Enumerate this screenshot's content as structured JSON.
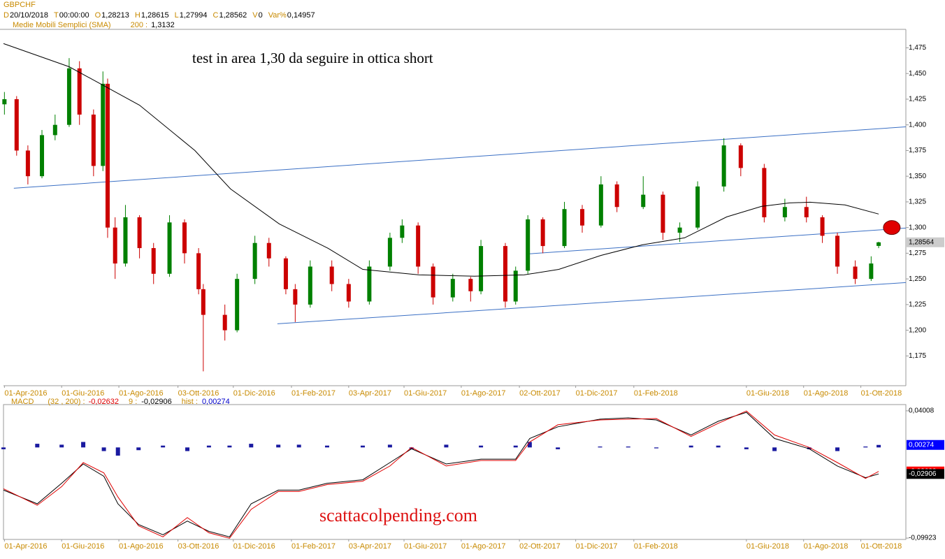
{
  "watermark": "scattacolpending.com",
  "chart_data": [
    {
      "type": "candlestick",
      "symbol": "GBPCHF",
      "info": [
        {
          "label": "D",
          "value": "20/10/2018"
        },
        {
          "label": "T",
          "value": "00:00:00"
        },
        {
          "label": "O",
          "value": "1,28213"
        },
        {
          "label": "H",
          "value": "1,28615"
        },
        {
          "label": "L",
          "value": "1,27994"
        },
        {
          "label": "C",
          "value": "1,28562"
        },
        {
          "label": "V",
          "value": "0"
        },
        {
          "label": "Var%",
          "value": "0,14957"
        }
      ],
      "indicator_label": "Medie Mobili Semplici (SMA)",
      "indicator_period": "200 :",
      "indicator_value": "1,3132",
      "annotation": "test in area 1,30 da seguire in ottica short",
      "x": [
        "2016-04-01",
        "2016-04-14",
        "2016-04-26",
        "2016-05-11",
        "2016-05-25",
        "2016-06-09",
        "2016-06-20",
        "2016-07-05",
        "2016-07-15",
        "2016-07-20",
        "2016-07-28",
        "2016-08-08",
        "2016-08-23",
        "2016-09-07",
        "2016-09-24",
        "2016-10-10",
        "2016-10-25",
        "2016-10-30",
        "2016-11-22",
        "2016-12-05",
        "2016-12-24",
        "2017-01-08",
        "2017-01-26",
        "2017-02-05",
        "2017-02-21",
        "2017-03-16",
        "2017-04-03",
        "2017-04-25",
        "2017-05-17",
        "2017-05-30",
        "2017-06-16",
        "2017-07-02",
        "2017-07-23",
        "2017-08-11",
        "2017-08-22",
        "2017-09-17",
        "2017-09-28",
        "2017-10-11",
        "2017-10-27",
        "2017-11-19",
        "2017-12-08",
        "2017-12-28",
        "2018-01-14",
        "2018-02-11",
        "2018-03-04",
        "2018-03-22",
        "2018-04-10",
        "2018-05-08",
        "2018-05-26",
        "2018-06-20",
        "2018-07-12",
        "2018-08-04",
        "2018-08-21",
        "2018-09-06",
        "2018-09-25",
        "2018-10-12",
        "2018-10-20"
      ],
      "open": [
        1.42,
        1.425,
        1.375,
        1.35,
        1.39,
        1.4,
        1.455,
        1.41,
        1.36,
        1.44,
        1.3,
        1.265,
        1.31,
        1.28,
        1.255,
        1.305,
        1.275,
        1.24,
        1.215,
        1.2,
        1.25,
        1.285,
        1.27,
        1.24,
        1.225,
        1.262,
        1.245,
        1.228,
        1.262,
        1.29,
        1.302,
        1.262,
        1.232,
        1.25,
        1.238,
        1.282,
        1.228,
        1.258,
        1.308,
        1.282,
        1.318,
        1.302,
        1.342,
        1.32,
        1.332,
        1.295,
        1.3,
        1.34,
        1.38,
        1.358,
        1.31,
        1.32,
        1.31,
        1.292,
        1.262,
        1.25,
        1.28213
      ],
      "high": [
        1.432,
        1.428,
        1.38,
        1.395,
        1.41,
        1.465,
        1.462,
        1.415,
        1.452,
        1.445,
        1.31,
        1.322,
        1.312,
        1.285,
        1.312,
        1.308,
        1.28,
        1.245,
        1.225,
        1.255,
        1.292,
        1.29,
        1.272,
        1.245,
        1.268,
        1.268,
        1.25,
        1.268,
        1.295,
        1.308,
        1.305,
        1.265,
        1.255,
        1.252,
        1.288,
        1.285,
        1.262,
        1.312,
        1.31,
        1.325,
        1.322,
        1.35,
        1.345,
        1.35,
        1.335,
        1.305,
        1.345,
        1.387,
        1.382,
        1.362,
        1.328,
        1.33,
        1.312,
        1.295,
        1.268,
        1.272,
        1.28615
      ],
      "low": [
        1.41,
        1.37,
        1.342,
        1.348,
        1.385,
        1.398,
        1.4,
        1.35,
        1.355,
        1.29,
        1.25,
        1.262,
        1.27,
        1.245,
        1.252,
        1.265,
        1.235,
        1.16,
        1.19,
        1.198,
        1.245,
        1.262,
        1.235,
        1.208,
        1.222,
        1.238,
        1.222,
        1.225,
        1.258,
        1.285,
        1.255,
        1.225,
        1.228,
        1.228,
        1.235,
        1.222,
        1.225,
        1.255,
        1.275,
        1.28,
        1.295,
        1.3,
        1.315,
        1.318,
        1.288,
        1.286,
        1.298,
        1.335,
        1.35,
        1.305,
        1.306,
        1.305,
        1.285,
        1.255,
        1.245,
        1.248,
        1.27994
      ],
      "close": [
        1.425,
        1.375,
        1.35,
        1.39,
        1.4,
        1.455,
        1.41,
        1.36,
        1.44,
        1.3,
        1.265,
        1.31,
        1.28,
        1.255,
        1.305,
        1.275,
        1.24,
        1.215,
        1.2,
        1.25,
        1.285,
        1.27,
        1.24,
        1.225,
        1.262,
        1.245,
        1.228,
        1.262,
        1.29,
        1.302,
        1.262,
        1.232,
        1.25,
        1.238,
        1.282,
        1.228,
        1.258,
        1.308,
        1.282,
        1.318,
        1.302,
        1.342,
        1.32,
        1.332,
        1.295,
        1.3,
        1.34,
        1.38,
        1.358,
        1.31,
        1.32,
        1.31,
        1.292,
        1.262,
        1.25,
        1.265,
        1.28562
      ],
      "up_color": "#008000",
      "down_color": "#cc0000",
      "sma": {
        "x": [
          "2016-03-31",
          "2016-06-09",
          "2016-08-23",
          "2016-10-21",
          "2016-11-28",
          "2017-01-19",
          "2017-03-12",
          "2017-04-18",
          "2017-06-17",
          "2017-08-15",
          "2017-10-07",
          "2017-11-13",
          "2017-12-28",
          "2018-02-10",
          "2018-03-27",
          "2018-05-11",
          "2018-06-17",
          "2018-07-17",
          "2018-08-08",
          "2018-09-14",
          "2018-10-20"
        ],
        "values": [
          1.4791,
          1.4566,
          1.4192,
          1.375,
          1.3376,
          1.3036,
          1.2798,
          1.2593,
          1.2539,
          1.2526,
          1.2539,
          1.2593,
          1.2729,
          1.2832,
          1.29,
          1.3104,
          1.3206,
          1.324,
          1.3247,
          1.322,
          1.3132
        ],
        "color": "#000000"
      },
      "trendlines": [
        {
          "x": [
            "2016-04-11",
            "2018-11-18"
          ],
          "values": [
            1.3383,
            1.3981
          ]
        },
        {
          "x": [
            "2017-01-17",
            "2018-11-18"
          ],
          "values": [
            1.2063,
            1.2464
          ]
        },
        {
          "x": [
            "2017-10-11",
            "2018-11-18"
          ],
          "values": [
            1.2743,
            1.2995
          ]
        }
      ],
      "trendline_color": "#3a6fc4",
      "marker": {
        "x": "2018-11-03",
        "value": 1.3,
        "color": "#e00000"
      },
      "last_price": {
        "value": 1.28564,
        "label": "1,28564"
      },
      "xlim": [
        "2016-03-31",
        "2018-11-18"
      ],
      "ylim": [
        1.146,
        1.493
      ],
      "xticks": [
        {
          "value": "2016-04-01",
          "label": "01-Apr-2016"
        },
        {
          "value": "2016-06-01",
          "label": "01-Giu-2016"
        },
        {
          "value": "2016-08-01",
          "label": "01-Ago-2016"
        },
        {
          "value": "2016-10-03",
          "label": "03-Ott-2016"
        },
        {
          "value": "2016-12-01",
          "label": "01-Dic-2016"
        },
        {
          "value": "2017-02-01",
          "label": "01-Feb-2017"
        },
        {
          "value": "2017-04-03",
          "label": "03-Apr-2017"
        },
        {
          "value": "2017-06-01",
          "label": "01-Giu-2017"
        },
        {
          "value": "2017-08-01",
          "label": "01-Ago-2017"
        },
        {
          "value": "2017-10-02",
          "label": "02-Ott-2017"
        },
        {
          "value": "2017-12-01",
          "label": "01-Dic-2017"
        },
        {
          "value": "2018-02-01",
          "label": "01-Feb-2018"
        },
        {
          "value": "2018-06-01",
          "label": "01-Giu-2018"
        },
        {
          "value": "2018-08-01",
          "label": "01-Ago-2018"
        },
        {
          "value": "2018-10-01",
          "label": "01-Ott-2018"
        }
      ],
      "yticks": [
        {
          "value": 1.175,
          "label": "1,175"
        },
        {
          "value": 1.2,
          "label": "1,200"
        },
        {
          "value": 1.225,
          "label": "1,225"
        },
        {
          "value": 1.25,
          "label": "1,250"
        },
        {
          "value": 1.275,
          "label": "1,275"
        },
        {
          "value": 1.3,
          "label": "1,300"
        },
        {
          "value": 1.325,
          "label": "1,325"
        },
        {
          "value": 1.35,
          "label": "1,350"
        },
        {
          "value": 1.375,
          "label": "1,375"
        },
        {
          "value": 1.4,
          "label": "1,400"
        },
        {
          "value": 1.425,
          "label": "1,425"
        },
        {
          "value": 1.45,
          "label": "1,450"
        },
        {
          "value": 1.475,
          "label": "1,475"
        }
      ]
    },
    {
      "type": "macd",
      "label": "MACD",
      "params": "(32 , 200) :",
      "macd_value": "-0,02632",
      "signal_label": "9 :",
      "signal_value": "-0,02906",
      "hist_label": "hist :",
      "hist_value": "0,00274",
      "x": [
        "2016-03-31",
        "2016-05-06",
        "2016-06-01",
        "2016-06-24",
        "2016-07-16",
        "2016-07-31",
        "2016-08-22",
        "2016-09-17",
        "2016-10-13",
        "2016-11-05",
        "2016-11-27",
        "2016-12-20",
        "2017-01-18",
        "2017-02-09",
        "2017-03-11",
        "2017-04-18",
        "2017-05-17",
        "2017-06-09",
        "2017-07-16",
        "2017-08-22",
        "2017-09-28",
        "2017-10-13",
        "2017-11-12",
        "2017-12-27",
        "2018-01-26",
        "2018-02-25",
        "2018-04-03",
        "2018-05-02",
        "2018-06-01",
        "2018-07-01",
        "2018-08-07",
        "2018-09-06",
        "2018-10-06",
        "2018-10-20"
      ],
      "macd": [
        -0.0452,
        -0.0633,
        -0.0429,
        -0.0166,
        -0.0279,
        -0.0542,
        -0.0858,
        -0.0979,
        -0.0768,
        -0.0934,
        -0.0994,
        -0.0678,
        -0.0482,
        -0.0482,
        -0.0407,
        -0.0369,
        -0.0203,
        0.0,
        -0.0203,
        -0.0143,
        -0.0143,
        0.006,
        0.0248,
        0.0301,
        0.0309,
        0.0316,
        0.012,
        0.0264,
        0.0399,
        0.0136,
        0.0,
        -0.0166,
        -0.0339,
        -0.02632
      ],
      "signal": [
        -0.0467,
        -0.0617,
        -0.0392,
        -0.0181,
        -0.0316,
        -0.0617,
        -0.0843,
        -0.0956,
        -0.0806,
        -0.0919,
        -0.0979,
        -0.0617,
        -0.0467,
        -0.0467,
        -0.0392,
        -0.0354,
        -0.0166,
        -0.0015,
        -0.0181,
        -0.0128,
        -0.0128,
        0.0098,
        0.0226,
        0.0309,
        0.0324,
        0.0301,
        0.0136,
        0.0286,
        0.0384,
        0.0098,
        -0.0015,
        -0.0203,
        -0.0331,
        -0.02906
      ],
      "hist": [
        -0.002,
        0.004,
        0.003,
        0.006,
        -0.004,
        -0.009,
        -0.003,
        0.002,
        -0.004,
        0.002,
        0.002,
        0.004,
        0.003,
        0.003,
        0.002,
        0.002,
        0.003,
        -0.002,
        0.003,
        0.002,
        0.002,
        0.006,
        -0.002,
        0.001,
        0.001,
        -0.001,
        0.002,
        0.002,
        -0.002,
        -0.004,
        -0.002,
        -0.004,
        0.001,
        0.00274
      ],
      "macd_color": "#e00000",
      "signal_color": "#000000",
      "hist_color": "#1a1aa0",
      "last_labels": [
        {
          "value": 0.00274,
          "label": "0,00274",
          "color": "#0000ff"
        },
        {
          "value": -0.02632,
          "label": "-0,02632",
          "color": "#ff0000"
        },
        {
          "value": -0.02906,
          "label": "-0,02906",
          "color": "#000000"
        }
      ],
      "ylim": [
        -0.1007,
        0.0469
      ],
      "yticks": [
        {
          "value": 0.04008,
          "label": "0,04008"
        },
        {
          "value": -0.09923,
          "label": "-0,09923"
        }
      ]
    }
  ]
}
